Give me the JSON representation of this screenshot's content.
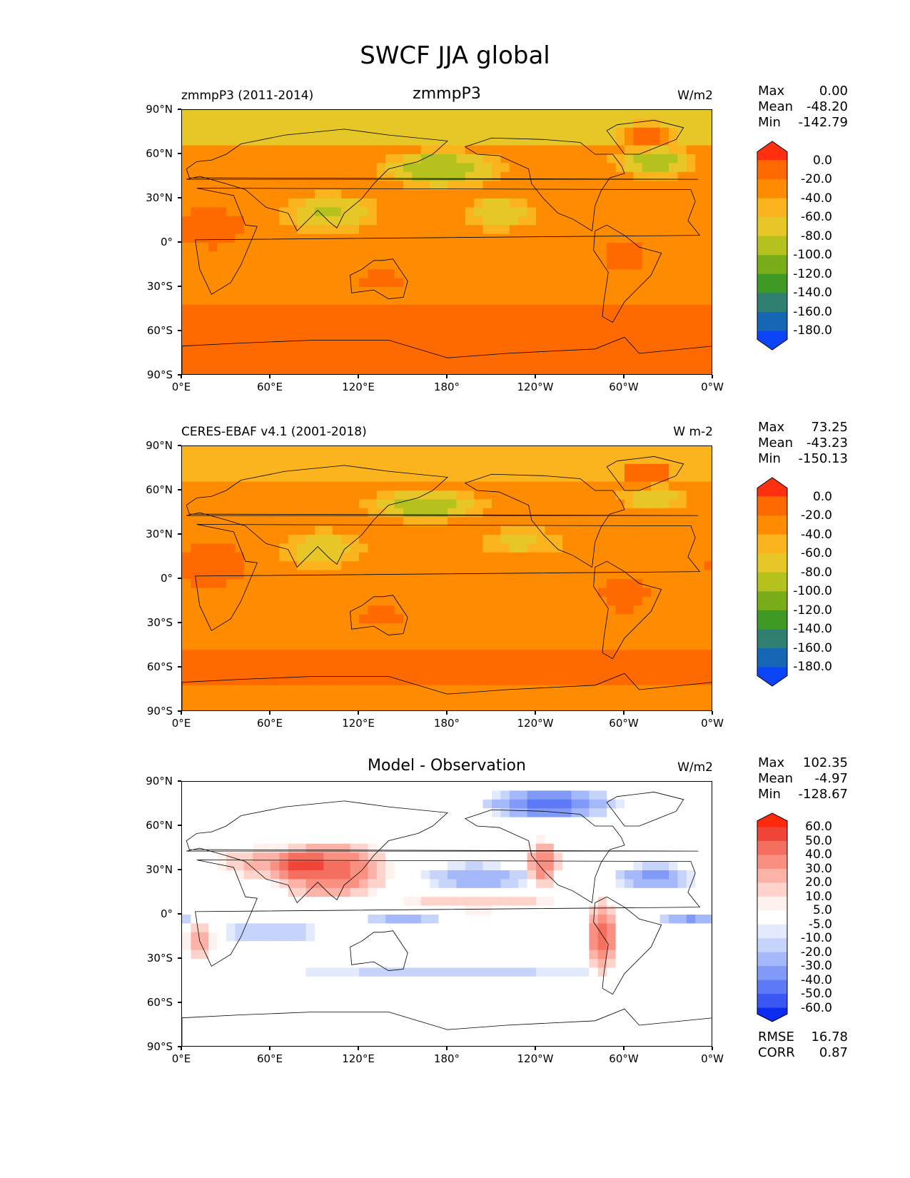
{
  "figure_title": "SWCF JJA global",
  "x_tick_labels": [
    "0°E",
    "60°E",
    "120°E",
    "180°",
    "120°W",
    "60°W",
    "0°W"
  ],
  "y_tick_labels": [
    "90°N",
    "60°N",
    "30°N",
    "0°",
    "30°S",
    "60°S",
    "90°S"
  ],
  "chart_data": [
    {
      "type": "heatmap",
      "panel": "test",
      "left_title": "zmmpP3 (2011-2014)",
      "center_title": "zmmpP3",
      "units": "W/m2",
      "stats": {
        "max_label": "Max",
        "max": "0.00",
        "mean_label": "Mean",
        "mean": "-48.20",
        "min_label": "Min",
        "min": "-142.79"
      },
      "colorbar": {
        "labels": [
          "0.0",
          "-20.0",
          "-40.0",
          "-60.0",
          "-80.0",
          "-100.0",
          "-120.0",
          "-140.0",
          "-160.0",
          "-180.0"
        ],
        "colors": [
          "#ff3010",
          "#ff6a00",
          "#ff8c00",
          "#fbb31e",
          "#e7c728",
          "#b5c21e",
          "#79ae1a",
          "#3e9a24",
          "#2f8070",
          "#1567b6",
          "#0c45f8"
        ]
      },
      "xlim": [
        0,
        360
      ],
      "ylim": [
        -90,
        90
      ],
      "field": "shortwave cloud forcing (model)"
    },
    {
      "type": "heatmap",
      "panel": "reference",
      "left_title": "CERES-EBAF v4.1 (2001-2018)",
      "center_title": "",
      "units": "W m-2",
      "stats": {
        "max_label": "Max",
        "max": "73.25",
        "mean_label": "Mean",
        "mean": "-43.23",
        "min_label": "Min",
        "min": "-150.13"
      },
      "colorbar": {
        "labels": [
          "0.0",
          "-20.0",
          "-40.0",
          "-60.0",
          "-80.0",
          "-100.0",
          "-120.0",
          "-140.0",
          "-160.0",
          "-180.0"
        ],
        "colors": [
          "#ff3010",
          "#ff6a00",
          "#ff8c00",
          "#fbb31e",
          "#e7c728",
          "#b5c21e",
          "#79ae1a",
          "#3e9a24",
          "#2f8070",
          "#1567b6",
          "#0c45f8"
        ]
      },
      "xlim": [
        0,
        360
      ],
      "ylim": [
        -90,
        90
      ],
      "field": "shortwave cloud forcing (observation)"
    },
    {
      "type": "heatmap",
      "panel": "difference",
      "left_title": "",
      "center_title": "Model - Observation",
      "units": "W/m2",
      "stats": {
        "max_label": "Max",
        "max": "102.35",
        "mean_label": "Mean",
        "mean": "-4.97",
        "min_label": "Min",
        "min": "-128.67"
      },
      "metrics": {
        "rmse_label": "RMSE",
        "rmse": "16.78",
        "corr_label": "CORR",
        "corr": "0.87"
      },
      "colorbar": {
        "labels": [
          "60.0",
          "50.0",
          "40.0",
          "30.0",
          "20.0",
          "10.0",
          "5.0",
          "-5.0",
          "-10.0",
          "-20.0",
          "-30.0",
          "-40.0",
          "-50.0",
          "-60.0"
        ],
        "colors": [
          "#ff2a0c",
          "#f1453a",
          "#f56f60",
          "#f99081",
          "#fcb2a6",
          "#fdd3cb",
          "#fff1ee",
          "#ffffff",
          "#e4eafd",
          "#c6d3fb",
          "#a4b8fa",
          "#8199f7",
          "#5d79f6",
          "#3b57f3",
          "#0c2cf0"
        ]
      },
      "xlim": [
        0,
        360
      ],
      "ylim": [
        -90,
        90
      ],
      "field": "difference"
    }
  ]
}
